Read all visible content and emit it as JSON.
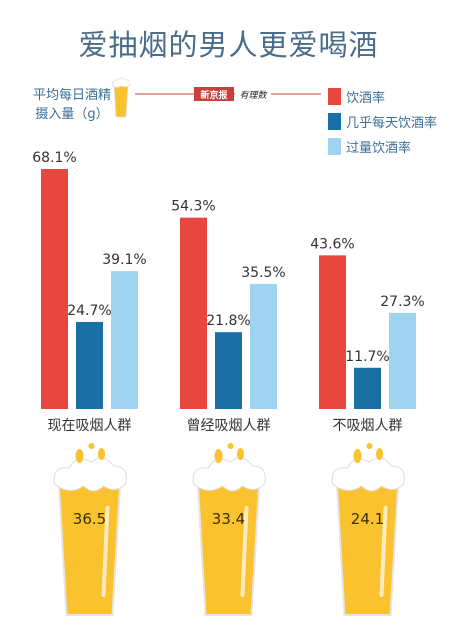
{
  "title": "爱抽烟的男人更爱喝酒",
  "intake_label_lines": [
    "平均每日酒精",
    "摄入量（g）"
  ],
  "source_logo": "新京报 有理数",
  "colors": {
    "drink_rate": "#e8473f",
    "daily_drink_rate": "#1a6fa6",
    "heavy_drink_rate": "#9fd3f0",
    "beer": "#f9c22e",
    "foam": "#ffffff"
  },
  "chart_data": {
    "type": "bar",
    "title": "爱抽烟的男人更爱喝酒",
    "categories": [
      "现在吸烟人群",
      "曾经吸烟人群",
      "不吸烟人群"
    ],
    "series": [
      {
        "name": "饮酒率",
        "values": [
          68.1,
          54.3,
          43.6
        ],
        "labels": [
          "68.1%",
          "54.3%",
          "43.6%"
        ]
      },
      {
        "name": "几乎每天饮酒率",
        "values": [
          24.7,
          21.8,
          11.7
        ],
        "labels": [
          "24.7%",
          "21.8%",
          "11.7%"
        ]
      },
      {
        "name": "过量饮酒率",
        "values": [
          39.1,
          35.5,
          27.3
        ],
        "labels": [
          "39.1%",
          "35.5%",
          "27.3%"
        ]
      }
    ],
    "alcohol_intake": {
      "values": [
        36.5,
        33.4,
        24.1
      ],
      "labels": [
        "36.5",
        "33.4",
        "24.1"
      ]
    },
    "ylim": [
      0,
      100
    ],
    "legend": "top-right",
    "grid": false
  }
}
